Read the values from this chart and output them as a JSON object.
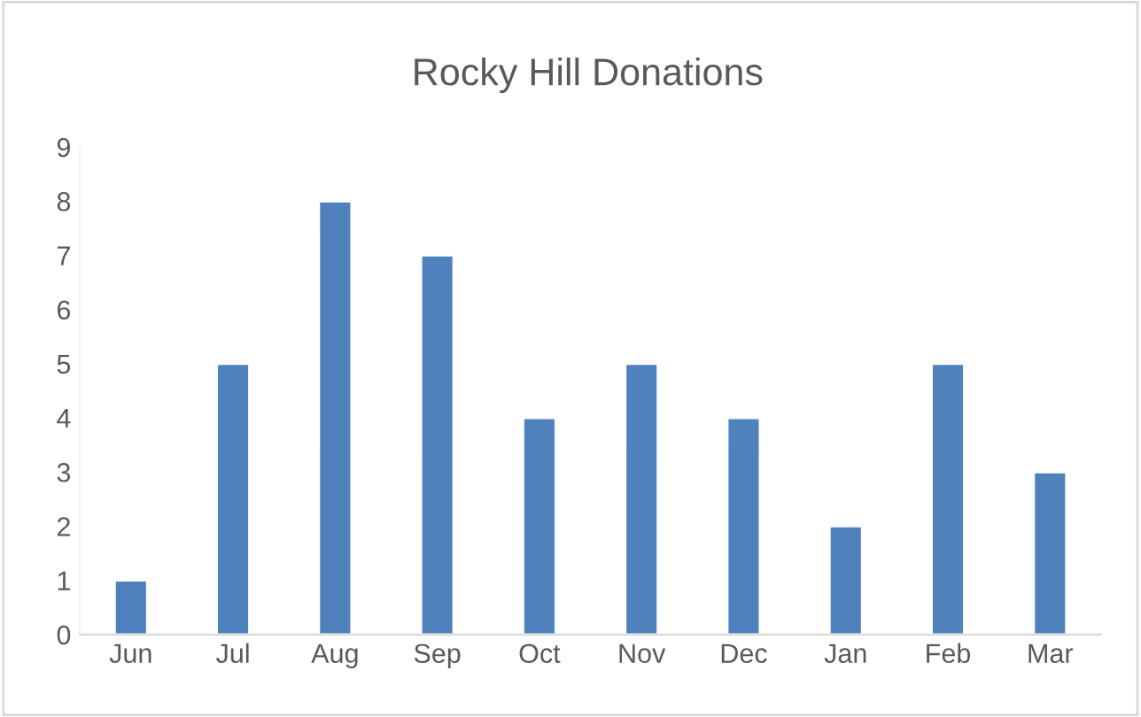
{
  "chart_data": {
    "type": "bar",
    "title": "Rocky Hill Donations",
    "categories": [
      "Jun",
      "Jul",
      "Aug",
      "Sep",
      "Oct",
      "Nov",
      "Dec",
      "Jan",
      "Feb",
      "Mar"
    ],
    "values": [
      1,
      5,
      8,
      7,
      4,
      5,
      4,
      2,
      5,
      3
    ],
    "color": "#4f81bd",
    "ylim": [
      0,
      9
    ],
    "yticks": [
      0,
      1,
      2,
      3,
      4,
      5,
      6,
      7,
      8,
      9
    ],
    "grid": false,
    "legend": false
  }
}
